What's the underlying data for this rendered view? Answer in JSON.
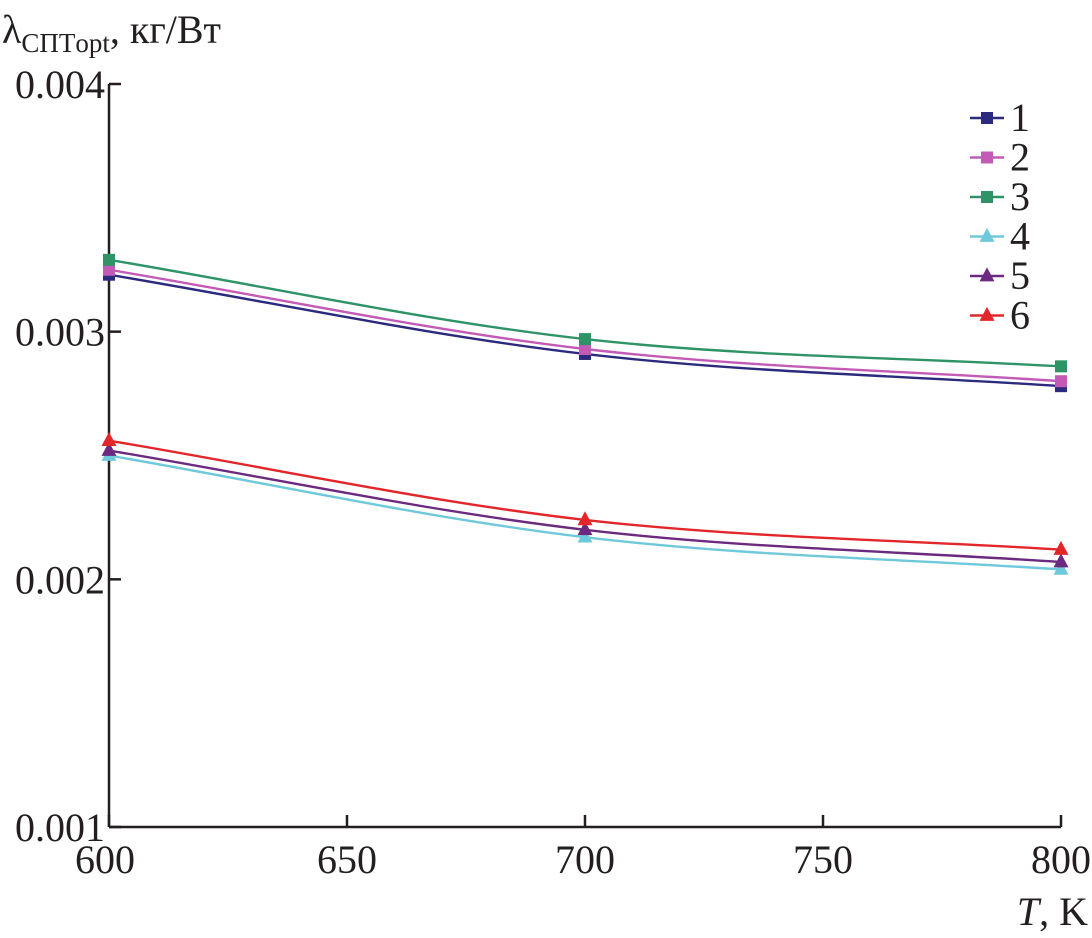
{
  "chart_data": {
    "type": "line",
    "title": "",
    "ylabel_main": "λ",
    "ylabel_sub": "СПТopt",
    "ylabel_unit": ", кг/Вт",
    "xlabel_italic": "T",
    "xlabel_unit": ", K",
    "xlim": [
      600,
      800
    ],
    "ylim": [
      0.001,
      0.004
    ],
    "x_ticks": [
      600,
      650,
      700,
      750,
      800
    ],
    "x_tick_labels": [
      "600",
      "650",
      "700",
      "750",
      "800"
    ],
    "y_ticks": [
      0.001,
      0.002,
      0.003,
      0.004
    ],
    "y_tick_labels": [
      "0.001",
      "0.002",
      "0.003",
      "0.004"
    ],
    "legend_position": "top-right",
    "x": [
      600,
      700,
      800
    ],
    "series": [
      {
        "name": "1",
        "values": [
          0.00323,
          0.00291,
          0.00278
        ],
        "color": "#2b2a7e",
        "marker": "square"
      },
      {
        "name": "2",
        "values": [
          0.00325,
          0.00293,
          0.0028
        ],
        "color": "#c35bb6",
        "marker": "square"
      },
      {
        "name": "3",
        "values": [
          0.00329,
          0.00297,
          0.00286
        ],
        "color": "#2e9467",
        "marker": "square"
      },
      {
        "name": "4",
        "values": [
          0.0025,
          0.00217,
          0.00204
        ],
        "color": "#6ec9db",
        "marker": "triangle"
      },
      {
        "name": "5",
        "values": [
          0.00252,
          0.0022,
          0.00207
        ],
        "color": "#6b2a80",
        "marker": "triangle"
      },
      {
        "name": "6",
        "values": [
          0.00256,
          0.00224,
          0.00212
        ],
        "color": "#e3262a",
        "marker": "triangle"
      }
    ]
  }
}
